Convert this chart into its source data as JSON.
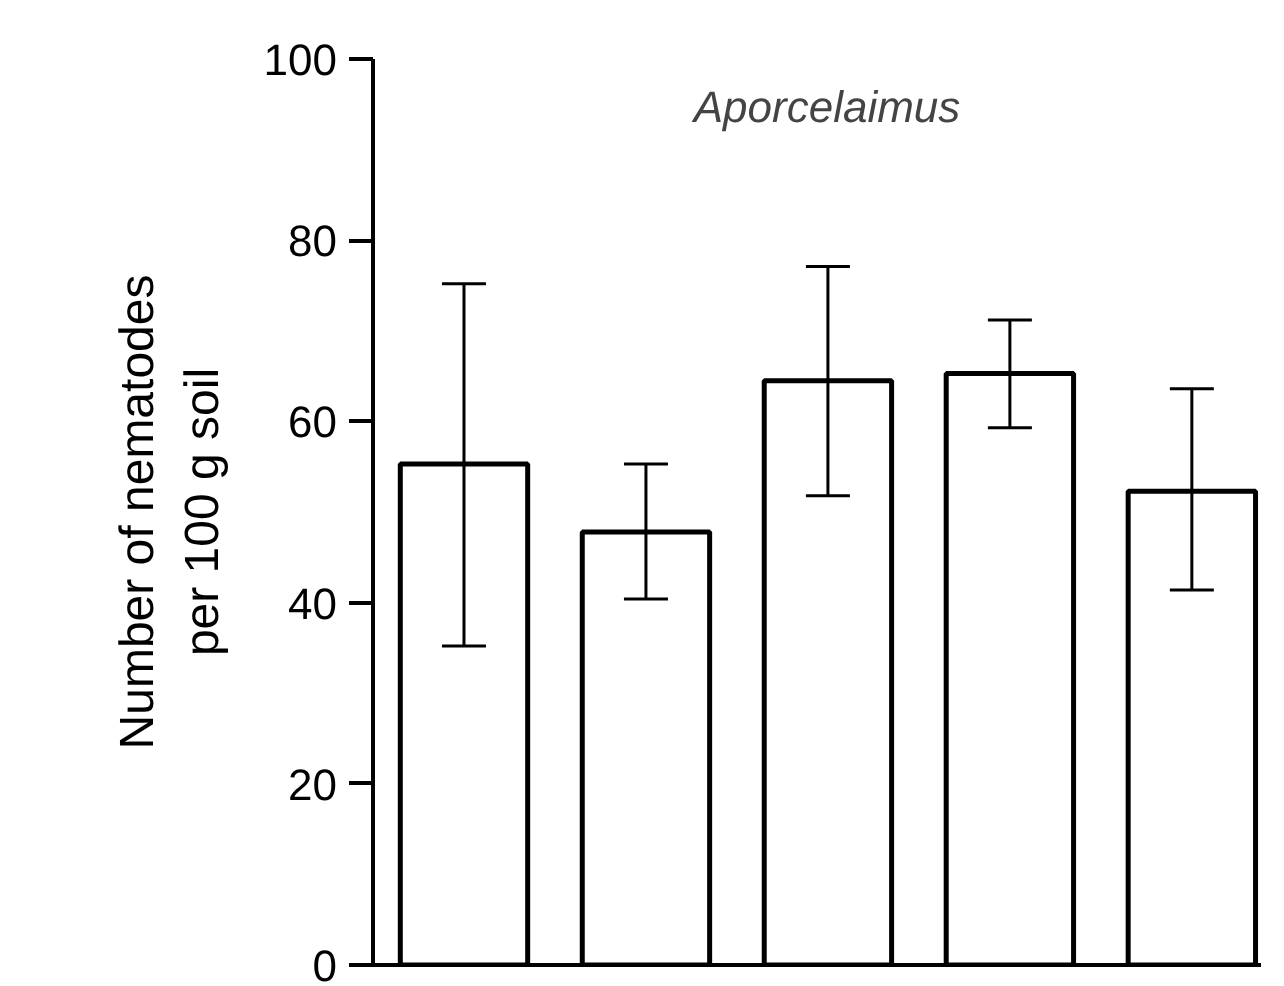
{
  "chart_data": {
    "type": "bar",
    "title": "Aporcelaimus",
    "ylabel": "Number of nematodes\nper 100 g soil",
    "categories": [
      null,
      null,
      null,
      null,
      null
    ],
    "values": [
      55.3,
      47.8,
      64.5,
      65.3,
      52.3
    ],
    "errors": [
      [
        35.2,
        75.2
      ],
      [
        40.4,
        55.3
      ],
      [
        51.8,
        77.1
      ],
      [
        59.3,
        71.2
      ],
      [
        41.4,
        63.6
      ]
    ],
    "color": "#ffffff",
    "ylim": [
      0,
      100
    ],
    "yticks": [
      0,
      20,
      40,
      60,
      80,
      100
    ],
    "grid": false,
    "tick_labels": "y"
  }
}
